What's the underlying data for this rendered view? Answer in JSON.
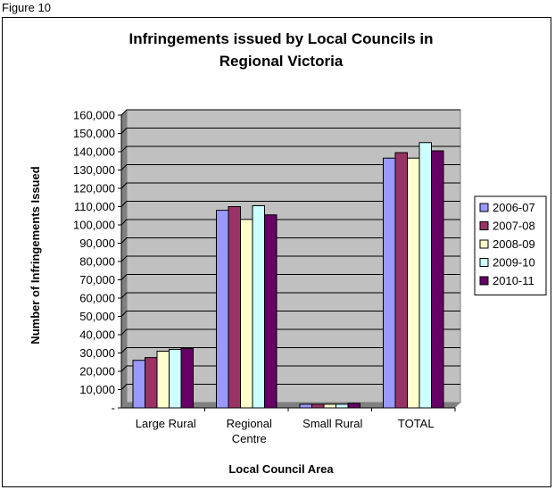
{
  "caption": "Figure 10",
  "chart_data": {
    "type": "bar",
    "title": [
      "Infringements issued by Local Councils in",
      "Regional Victoria"
    ],
    "xlabel": "Local Council Area",
    "ylabel": "Number of Infringements Issued",
    "categories": [
      [
        "Large Rural"
      ],
      [
        "Regional",
        "Centre"
      ],
      [
        "Small Rural"
      ],
      [
        "TOTAL"
      ]
    ],
    "ylim": [
      0,
      160000
    ],
    "yticks": [
      "-",
      "10,000",
      "20,000",
      "30,000",
      "40,000",
      "50,000",
      "60,000",
      "70,000",
      "80,000",
      "90,000",
      "100,000",
      "110,000",
      "120,000",
      "130,000",
      "140,000",
      "150,000",
      "160,000"
    ],
    "grid": true,
    "legend_position": "right",
    "plot_background": "#c0c0c0",
    "series": [
      {
        "name": "2006-07",
        "color": "#9999ff",
        "values": [
          26000,
          108000,
          2000,
          136500
        ]
      },
      {
        "name": "2007-08",
        "color": "#993366",
        "values": [
          27500,
          110000,
          2000,
          139500
        ]
      },
      {
        "name": "2008-09",
        "color": "#ffffcc",
        "values": [
          31000,
          103000,
          2000,
          136500
        ]
      },
      {
        "name": "2009-10",
        "color": "#ccffff",
        "values": [
          32000,
          110500,
          2000,
          145000
        ]
      },
      {
        "name": "2010-11",
        "color": "#660066",
        "values": [
          32500,
          105500,
          2500,
          140500
        ]
      }
    ]
  }
}
